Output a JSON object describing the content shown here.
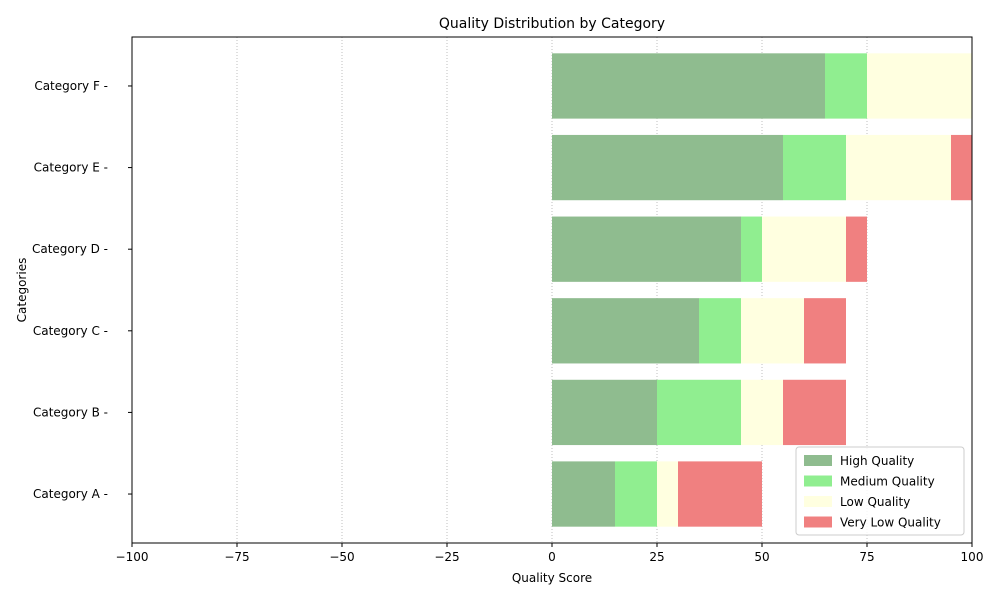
{
  "chart_data": {
    "type": "bar",
    "orientation": "horizontal",
    "stacked": true,
    "title": "Quality Distribution by Category",
    "xlabel": "Quality Score",
    "ylabel": "Categories",
    "xlim": [
      -100,
      100
    ],
    "xticks": [
      -100,
      -75,
      -50,
      -25,
      0,
      25,
      50,
      75,
      100
    ],
    "grid": "x-dotted",
    "legend_position": "lower-right",
    "categories": [
      "Category A",
      "Category B",
      "Category C",
      "Category D",
      "Category E",
      "Category F"
    ],
    "tick_suffix": " -",
    "series": [
      {
        "name": "High Quality",
        "color": "#8fbc8f",
        "values": [
          15,
          25,
          35,
          45,
          55,
          65
        ]
      },
      {
        "name": "Medium Quality",
        "color": "#90ee90",
        "values": [
          10,
          20,
          10,
          5,
          15,
          10
        ]
      },
      {
        "name": "Low Quality",
        "color": "#ffffe0",
        "values": [
          5,
          10,
          15,
          20,
          25,
          25
        ]
      },
      {
        "name": "Very Low Quality",
        "color": "#f08080",
        "values": [
          20,
          15,
          10,
          5,
          5,
          0
        ]
      }
    ]
  }
}
